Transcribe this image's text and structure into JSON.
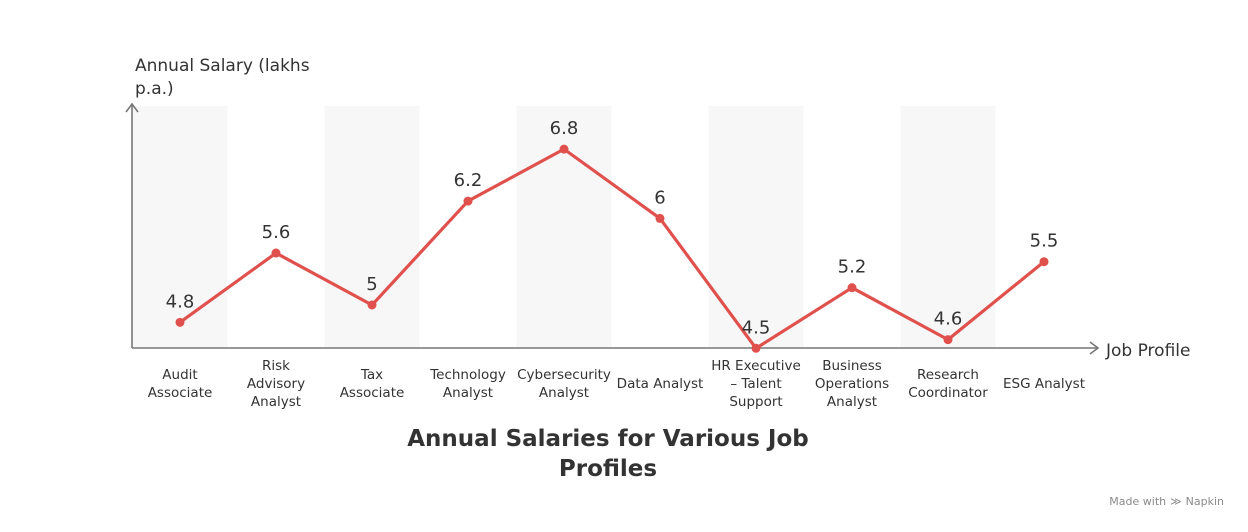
{
  "chart_data": {
    "type": "line",
    "title": "Annual Salaries for Various Job Profiles",
    "xlabel": "Job Profile",
    "ylabel": "Annual Salary (lakhs p.a.)",
    "categories": [
      "Audit Associate",
      "Risk Advisory Analyst",
      "Tax Associate",
      "Technology Analyst",
      "Cybersecurity Analyst",
      "Data Analyst",
      "HR Executive – Talent Support",
      "Business Operations Analyst",
      "Research Coordinator",
      "ESG Analyst"
    ],
    "series": [
      {
        "values": [
          4.8,
          5.6,
          5.0,
          6.2,
          6.8,
          6.0,
          4.5,
          5.2,
          4.6,
          5.5
        ],
        "labels": [
          "4.8",
          "5.6",
          "5",
          "6.2",
          "6.8",
          "6",
          "4.5",
          "5.2",
          "4.6",
          "5.5"
        ]
      }
    ],
    "ylim": [
      4.0,
      7.5
    ],
    "grid": false,
    "colors": {
      "line": "#e0514d",
      "band": "#f7f7f7",
      "axis": "#777777",
      "text": "#333333"
    }
  },
  "footer": {
    "made_with": "Made with",
    "brand": "Napkin"
  }
}
